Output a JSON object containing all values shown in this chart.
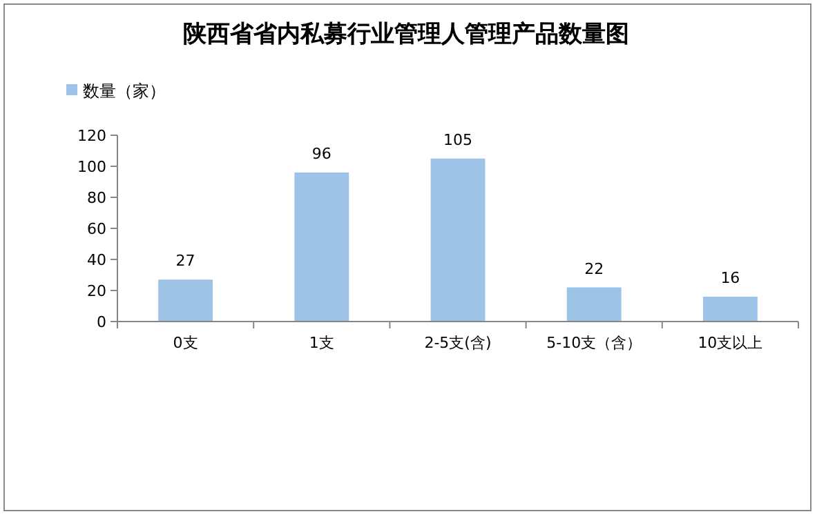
{
  "chart_data": {
    "type": "bar",
    "title": "陕西省省内私募行业管理人管理产品数量图",
    "categories": [
      "0支",
      "1支",
      "2-5支(含)",
      "5-10支（含）",
      "10支以上"
    ],
    "series": [
      {
        "name": "数量（家）",
        "color": "#9dc3e6",
        "values": [
          27,
          96,
          105,
          22,
          16
        ]
      }
    ],
    "ylim": [
      0,
      120
    ],
    "yticks": [
      0,
      20,
      40,
      60,
      80,
      100,
      120
    ],
    "grid": false,
    "legend": "top left",
    "data_labels": true
  }
}
